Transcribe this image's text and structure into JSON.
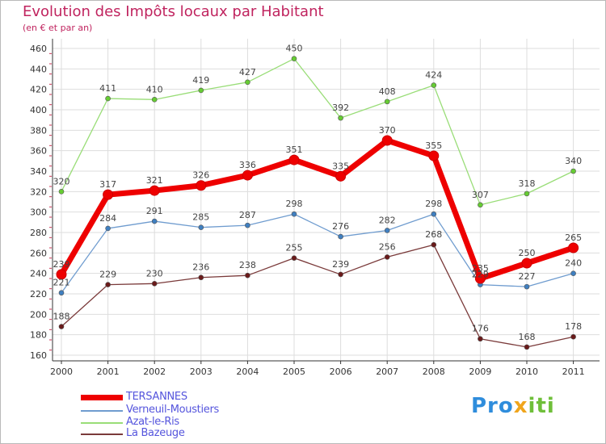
{
  "title": "Evolution des Impôts locaux par Habitant",
  "subtitle": "(en € et par an)",
  "brand": {
    "part1": "Pro",
    "part2": "x",
    "part3": "iti"
  },
  "colors": {
    "title": "#c0245f",
    "grid": "#dddddd",
    "axis": "#333333",
    "legend_text": "#5555dd"
  },
  "chart_data": {
    "type": "line",
    "title": "Evolution des Impôts locaux par Habitant",
    "subtitle": "(en € et par an)",
    "xlabel": "",
    "ylabel": "",
    "ylim": [
      160,
      460
    ],
    "ytick_step": 20,
    "grid": true,
    "legend_position": "bottom-left",
    "categories": [
      "2000",
      "2001",
      "2002",
      "2003",
      "2004",
      "2005",
      "2006",
      "2007",
      "2008",
      "2009",
      "2010",
      "2011"
    ],
    "series": [
      {
        "name": "TERSANNES",
        "color": "#ee0000",
        "marker": "#ee0000",
        "values": [
          239,
          317,
          321,
          326,
          336,
          351,
          335,
          370,
          355,
          235,
          250,
          265
        ],
        "emphasis": true
      },
      {
        "name": "Verneuil-Moustiers",
        "color": "#6f9ccf",
        "marker": "#3f7fc0",
        "values": [
          221,
          284,
          291,
          285,
          287,
          298,
          276,
          282,
          298,
          229,
          227,
          240
        ]
      },
      {
        "name": "Azat-le-Ris",
        "color": "#99dd77",
        "marker": "#66cc33",
        "values": [
          320,
          411,
          410,
          419,
          427,
          450,
          392,
          408,
          424,
          307,
          318,
          340
        ]
      },
      {
        "name": "La Bazeuge",
        "color": "#7a3a3a",
        "marker": "#6a1a1a",
        "values": [
          188,
          229,
          230,
          236,
          238,
          255,
          239,
          256,
          268,
          176,
          168,
          178
        ]
      }
    ],
    "labels": [
      [
        "239",
        "317",
        "321",
        "326",
        "336",
        "351",
        "335",
        "370",
        "355",
        "235",
        "250",
        "265"
      ],
      [
        "221",
        "284",
        "291",
        "285",
        "287",
        "298",
        "276",
        "282",
        "298",
        "229",
        "227",
        "240"
      ],
      [
        "320",
        "411",
        "410",
        "419",
        "427",
        "450",
        "392",
        "408",
        "424",
        "307",
        "318",
        "340"
      ],
      [
        "188",
        "229",
        "230",
        "236",
        "238",
        "255",
        "239",
        "256",
        "268",
        "176",
        "168",
        "178"
      ]
    ]
  }
}
